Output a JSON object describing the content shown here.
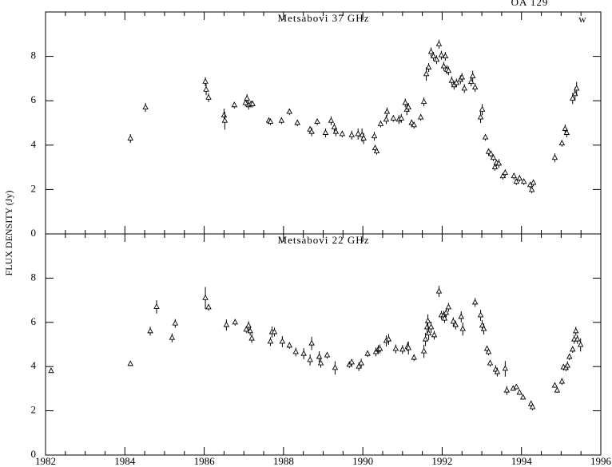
{
  "chart_data": [
    {
      "type": "scatter",
      "title": "Metsabovi 37 GHz",
      "source": "OA 129",
      "annotation": "w",
      "ylabel": "FLUX DENSITY (Jy)",
      "marker": "triangle",
      "color": "#000000",
      "xlim": [
        1982,
        1996
      ],
      "ylim": [
        0,
        10
      ],
      "yticks": [
        0,
        2,
        4,
        6,
        8
      ],
      "x": [
        1984.14,
        1984.52,
        1986.03,
        1986.05,
        1986.11,
        1986.5,
        1986.52,
        1986.76,
        1987.04,
        1987.08,
        1987.12,
        1987.18,
        1987.22,
        1987.63,
        1987.67,
        1987.95,
        1988.15,
        1988.35,
        1988.67,
        1988.71,
        1988.85,
        1989.06,
        1989.2,
        1989.28,
        1989.32,
        1989.48,
        1989.72,
        1989.88,
        1989.98,
        1990.02,
        1990.29,
        1990.31,
        1990.35,
        1990.45,
        1990.59,
        1990.61,
        1990.77,
        1990.91,
        1990.97,
        1991.07,
        1991.11,
        1991.15,
        1991.23,
        1991.29,
        1991.46,
        1991.54,
        1991.6,
        1991.66,
        1991.72,
        1991.78,
        1991.86,
        1991.92,
        1991.98,
        1992.04,
        1992.08,
        1992.12,
        1992.16,
        1992.24,
        1992.3,
        1992.36,
        1992.46,
        1992.5,
        1992.56,
        1992.73,
        1992.77,
        1992.83,
        1992.97,
        1993.01,
        1993.09,
        1993.17,
        1993.23,
        1993.29,
        1993.33,
        1993.37,
        1993.43,
        1993.53,
        1993.59,
        1993.81,
        1993.87,
        1993.95,
        1994.06,
        1994.22,
        1994.26,
        1994.3,
        1994.84,
        1995.02,
        1995.1,
        1995.14,
        1995.29,
        1995.35,
        1995.39
      ],
      "values": [
        4.3,
        5.7,
        6.86,
        6.5,
        6.14,
        5.34,
        5.1,
        5.8,
        5.9,
        6.1,
        5.8,
        5.85,
        5.85,
        5.1,
        5.05,
        5.1,
        5.5,
        5.0,
        4.7,
        4.6,
        5.05,
        4.55,
        5.1,
        4.8,
        4.6,
        4.5,
        4.45,
        4.5,
        4.45,
        4.3,
        4.4,
        3.86,
        3.72,
        4.95,
        5.15,
        5.5,
        5.2,
        5.15,
        5.2,
        5.9,
        5.6,
        5.7,
        5.0,
        4.9,
        5.25,
        5.95,
        7.2,
        7.5,
        8.2,
        8.0,
        7.85,
        8.55,
        8.05,
        7.55,
        8.0,
        7.4,
        7.35,
        6.9,
        6.7,
        6.8,
        6.95,
        7.05,
        6.55,
        6.85,
        7.1,
        6.6,
        5.25,
        5.6,
        4.35,
        3.7,
        3.6,
        3.43,
        3.0,
        3.2,
        3.17,
        2.6,
        2.75,
        2.6,
        2.35,
        2.5,
        2.35,
        2.2,
        1.98,
        2.3,
        3.43,
        4.08,
        4.73,
        4.55,
        6.1,
        6.3,
        6.55
      ],
      "errors": [
        0.2,
        0.2,
        0.2,
        0.25,
        0.2,
        0.3,
        0.4,
        0.15,
        0.15,
        0.2,
        0.2,
        0.15,
        0.15,
        0.15,
        0.15,
        0.15,
        0.15,
        0.15,
        0.15,
        0.2,
        0.15,
        0.2,
        0.2,
        0.2,
        0.2,
        0.15,
        0.2,
        0.25,
        0.3,
        0.25,
        0.2,
        0.15,
        0.15,
        0.15,
        0.2,
        0.2,
        0.15,
        0.2,
        0.2,
        0.2,
        0.25,
        0.2,
        0.15,
        0.15,
        0.15,
        0.2,
        0.3,
        0.2,
        0.2,
        0.2,
        0.2,
        0.2,
        0.2,
        0.2,
        0.2,
        0.2,
        0.2,
        0.2,
        0.2,
        0.2,
        0.2,
        0.2,
        0.2,
        0.2,
        0.25,
        0.2,
        0.25,
        0.25,
        0.15,
        0.15,
        0.15,
        0.15,
        0.15,
        0.15,
        0.2,
        0.15,
        0.15,
        0.15,
        0.15,
        0.15,
        0.15,
        0.15,
        0.15,
        0.15,
        0.2,
        0.15,
        0.2,
        0.2,
        0.25,
        0.3,
        0.3
      ]
    },
    {
      "type": "scatter",
      "title": "Metsabovi 22 GHz",
      "marker": "triangle",
      "color": "#000000",
      "xlim": [
        1982,
        1996
      ],
      "ylim": [
        0,
        10
      ],
      "yticks": [
        0,
        2,
        4,
        6,
        8
      ],
      "xticks": [
        1982,
        1984,
        1986,
        1988,
        1990,
        1992,
        1994,
        1996
      ],
      "xminorticks": [
        1982.5,
        1983,
        1983.5,
        1984.5,
        1985,
        1985.5,
        1986.5,
        1987,
        1987.5,
        1988.5,
        1989,
        1989.5,
        1990.5,
        1991,
        1991.5,
        1992.5,
        1993,
        1993.5,
        1994.5,
        1995,
        1995.5
      ],
      "x": [
        1982.14,
        1984.14,
        1984.64,
        1984.8,
        1985.19,
        1985.27,
        1986.03,
        1986.11,
        1986.56,
        1986.78,
        1987.06,
        1987.12,
        1987.16,
        1987.2,
        1987.67,
        1987.71,
        1987.77,
        1987.97,
        1988.15,
        1988.31,
        1988.51,
        1988.67,
        1988.71,
        1988.9,
        1988.94,
        1989.1,
        1989.3,
        1989.66,
        1989.72,
        1989.9,
        1989.96,
        1990.12,
        1990.33,
        1990.39,
        1990.43,
        1990.59,
        1990.65,
        1990.83,
        1991.0,
        1991.13,
        1991.15,
        1991.29,
        1991.54,
        1991.58,
        1991.62,
        1991.64,
        1991.66,
        1991.72,
        1991.8,
        1991.92,
        1991.98,
        1992.04,
        1992.06,
        1992.1,
        1992.16,
        1992.28,
        1992.34,
        1992.48,
        1992.52,
        1992.83,
        1992.97,
        1993.01,
        1993.05,
        1993.13,
        1993.17,
        1993.21,
        1993.35,
        1993.39,
        1993.59,
        1993.63,
        1993.79,
        1993.87,
        1993.95,
        1994.04,
        1994.24,
        1994.28,
        1994.84,
        1994.9,
        1995.02,
        1995.06,
        1995.12,
        1995.16,
        1995.21,
        1995.29,
        1995.33,
        1995.37,
        1995.41,
        1995.49
      ],
      "values": [
        3.8,
        4.12,
        5.6,
        6.7,
        5.3,
        5.95,
        7.1,
        6.68,
        5.88,
        6.0,
        5.67,
        5.85,
        5.6,
        5.27,
        5.13,
        5.56,
        5.56,
        5.13,
        4.95,
        4.66,
        4.58,
        4.3,
        5.05,
        4.44,
        4.15,
        4.51,
        3.94,
        4.08,
        4.19,
        4.0,
        4.15,
        4.58,
        4.66,
        4.77,
        4.8,
        5.16,
        5.23,
        4.8,
        4.77,
        4.9,
        4.84,
        4.4,
        4.69,
        5.23,
        5.78,
        6.06,
        5.5,
        5.78,
        5.42,
        7.4,
        6.32,
        6.32,
        6.17,
        6.43,
        6.68,
        6.03,
        5.88,
        6.25,
        5.7,
        6.9,
        6.32,
        5.85,
        5.7,
        4.8,
        4.66,
        4.15,
        3.86,
        3.75,
        3.9,
        2.92,
        3.0,
        3.07,
        2.82,
        2.6,
        2.31,
        2.17,
        3.14,
        2.92,
        3.32,
        3.97,
        3.94,
        4.04,
        4.44,
        4.77,
        5.23,
        5.6,
        5.23,
        4.98
      ],
      "errors": [
        null,
        0.1,
        0.2,
        0.3,
        0.2,
        0.2,
        0.5,
        0.15,
        0.25,
        0.15,
        0.15,
        0.2,
        0.2,
        0.2,
        0.2,
        0.25,
        0.2,
        0.25,
        0.15,
        0.2,
        0.25,
        0.25,
        0.3,
        0.25,
        0.2,
        0.15,
        0.3,
        0.15,
        0.15,
        0.2,
        0.2,
        0.15,
        0.2,
        0.2,
        0.2,
        0.25,
        0.25,
        0.2,
        0.2,
        0.2,
        0.3,
        0.15,
        0.3,
        0.3,
        0.35,
        0.3,
        0.3,
        0.25,
        0.2,
        0.25,
        0.2,
        0.2,
        0.2,
        0.2,
        0.2,
        0.2,
        0.2,
        0.25,
        0.3,
        0.2,
        0.25,
        0.25,
        0.25,
        0.15,
        0.15,
        0.15,
        0.2,
        0.2,
        0.35,
        0.2,
        0.1,
        0.1,
        0.1,
        0.1,
        0.15,
        0.15,
        0.1,
        0.1,
        0.15,
        0.15,
        0.15,
        0.2,
        0.15,
        0.15,
        0.2,
        0.2,
        0.2,
        0.3
      ]
    }
  ]
}
